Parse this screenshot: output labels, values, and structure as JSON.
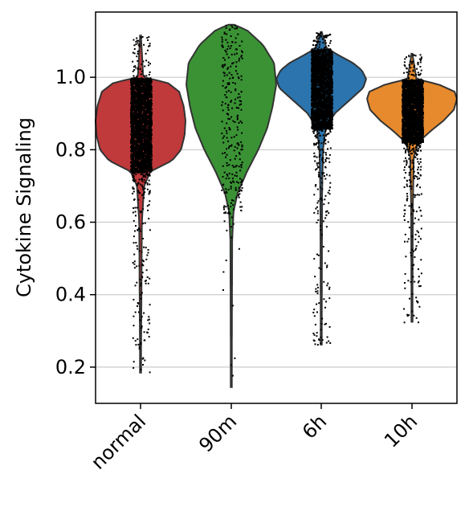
{
  "chart_data": {
    "type": "violin",
    "ylabel": "Cytokine Signaling",
    "xlabel": "",
    "categories": [
      "normal",
      "90m",
      "6h",
      "10h"
    ],
    "ylim": [
      0.1,
      1.18
    ],
    "yticks": [
      0.2,
      0.4,
      0.6,
      0.8,
      1.0
    ],
    "ytick_labels": [
      "0.2",
      "0.4",
      "0.6",
      "0.8",
      "1.0"
    ],
    "grid": "horizontal",
    "jitter_points": true,
    "violins": [
      {
        "category": "normal",
        "color": "#c0393b",
        "min": 0.185,
        "max": 1.115,
        "body_min": 0.74,
        "body_max": 1.0,
        "profile": [
          [
            0.185,
            0.01
          ],
          [
            0.6,
            0.03
          ],
          [
            0.7,
            0.08
          ],
          [
            0.74,
            0.22
          ],
          [
            0.77,
            0.7
          ],
          [
            0.8,
            0.9
          ],
          [
            0.84,
            0.98
          ],
          [
            0.88,
            1.0
          ],
          [
            0.92,
            0.96
          ],
          [
            0.96,
            0.86
          ],
          [
            0.985,
            0.6
          ],
          [
            1.0,
            0.06
          ],
          [
            1.115,
            0.01
          ]
        ]
      },
      {
        "category": "90m",
        "color": "#3a9234",
        "min": 0.145,
        "max": 1.145,
        "body_min": 0.63,
        "body_max": 1.145,
        "profile": [
          [
            0.145,
            0.01
          ],
          [
            0.55,
            0.02
          ],
          [
            0.63,
            0.05
          ],
          [
            0.68,
            0.14
          ],
          [
            0.74,
            0.35
          ],
          [
            0.8,
            0.6
          ],
          [
            0.86,
            0.8
          ],
          [
            0.92,
            0.92
          ],
          [
            0.98,
            1.0
          ],
          [
            1.04,
            0.95
          ],
          [
            1.09,
            0.7
          ],
          [
            1.13,
            0.35
          ],
          [
            1.145,
            0.06
          ]
        ]
      },
      {
        "category": "6h",
        "color": "#2b74ad",
        "min": 0.262,
        "max": 1.125,
        "body_min": 0.86,
        "body_max": 1.08,
        "profile": [
          [
            0.262,
            0.01
          ],
          [
            0.68,
            0.02
          ],
          [
            0.8,
            0.04
          ],
          [
            0.86,
            0.1
          ],
          [
            0.9,
            0.3
          ],
          [
            0.94,
            0.66
          ],
          [
            0.97,
            0.93
          ],
          [
            0.995,
            1.0
          ],
          [
            1.02,
            0.9
          ],
          [
            1.04,
            0.7
          ],
          [
            1.06,
            0.4
          ],
          [
            1.08,
            0.12
          ],
          [
            1.125,
            0.01
          ]
        ]
      },
      {
        "category": "10h",
        "color": "#e68a2d",
        "min": 0.325,
        "max": 1.065,
        "body_min": 0.82,
        "body_max": 0.995,
        "profile": [
          [
            0.325,
            0.01
          ],
          [
            0.65,
            0.02
          ],
          [
            0.78,
            0.04
          ],
          [
            0.82,
            0.14
          ],
          [
            0.85,
            0.4
          ],
          [
            0.88,
            0.7
          ],
          [
            0.91,
            0.93
          ],
          [
            0.94,
            1.0
          ],
          [
            0.96,
            0.95
          ],
          [
            0.98,
            0.6
          ],
          [
            0.995,
            0.1
          ],
          [
            1.065,
            0.01
          ]
        ]
      }
    ]
  }
}
